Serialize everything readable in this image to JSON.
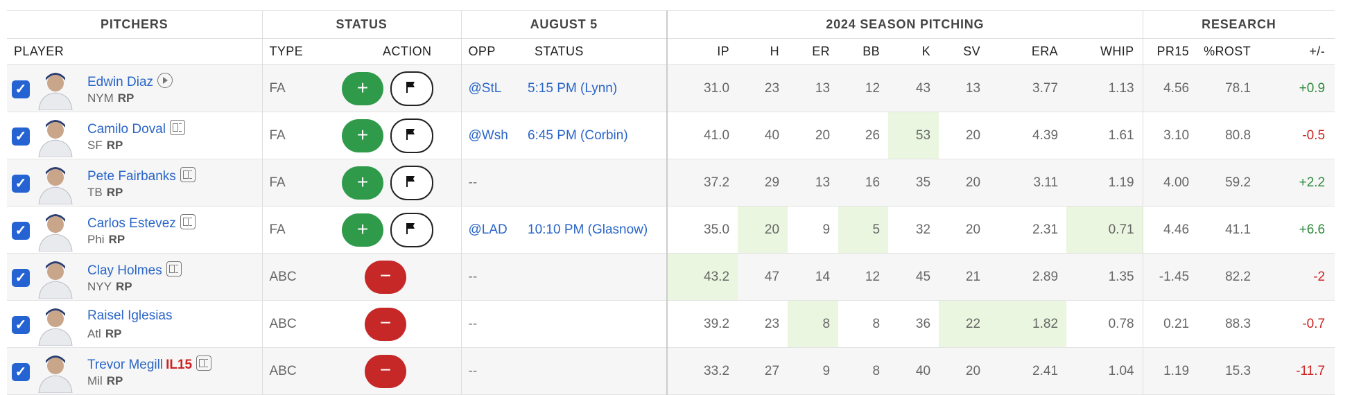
{
  "header": {
    "groups": {
      "pitchers": "PITCHERS",
      "status": "STATUS",
      "date": "AUGUST 5",
      "season": "2024 SEASON PITCHING",
      "research": "RESEARCH"
    },
    "cols": {
      "player": "PLAYER",
      "type": "TYPE",
      "action": "ACTION",
      "opp": "OPP",
      "status": "STATUS",
      "ip": "IP",
      "h": "H",
      "er": "ER",
      "bb": "BB",
      "k": "K",
      "sv": "SV",
      "era": "ERA",
      "whip": "WHIP",
      "pr15": "PR15",
      "rost": "%ROST",
      "plusminus": "+/-"
    }
  },
  "colors": {
    "link": "#2a65c8",
    "add": "#2f9b4a",
    "drop": "#c62828",
    "highlight": "#eaf6df",
    "checkbox": "#2563d2"
  },
  "icons": {
    "checkbox": "✓",
    "add": "+",
    "drop": "−",
    "play": "play-icon",
    "news": "news-icon",
    "flag": "flag-icon"
  },
  "rows": [
    {
      "name": "Edwin Diaz",
      "tag": "",
      "icon": "play",
      "team": "NYM",
      "pos": "RP",
      "type": "FA",
      "action": "add",
      "opp": "@StL",
      "status": "5:15 PM (Lynn)",
      "ip": "31.0",
      "h": "23",
      "er": "13",
      "bb": "12",
      "k": "43",
      "sv": "13",
      "era": "3.77",
      "whip": "1.13",
      "pr15": "4.56",
      "rost": "78.1",
      "plusminus": "+0.9",
      "highlights": []
    },
    {
      "name": "Camilo Doval",
      "tag": "",
      "icon": "news",
      "team": "SF",
      "pos": "RP",
      "type": "FA",
      "action": "add",
      "opp": "@Wsh",
      "status": "6:45 PM (Corbin)",
      "ip": "41.0",
      "h": "40",
      "er": "20",
      "bb": "26",
      "k": "53",
      "sv": "20",
      "era": "4.39",
      "whip": "1.61",
      "pr15": "3.10",
      "rost": "80.8",
      "plusminus": "-0.5",
      "highlights": [
        "k"
      ]
    },
    {
      "name": "Pete Fairbanks",
      "tag": "",
      "icon": "news",
      "team": "TB",
      "pos": "RP",
      "type": "FA",
      "action": "add",
      "opp": "--",
      "status": "",
      "ip": "37.2",
      "h": "29",
      "er": "13",
      "bb": "16",
      "k": "35",
      "sv": "20",
      "era": "3.11",
      "whip": "1.19",
      "pr15": "4.00",
      "rost": "59.2",
      "plusminus": "+2.2",
      "highlights": []
    },
    {
      "name": "Carlos Estevez",
      "tag": "",
      "icon": "news",
      "team": "Phi",
      "pos": "RP",
      "type": "FA",
      "action": "add",
      "opp": "@LAD",
      "status": "10:10 PM (Glasnow)",
      "ip": "35.0",
      "h": "20",
      "er": "9",
      "bb": "5",
      "k": "32",
      "sv": "20",
      "era": "2.31",
      "whip": "0.71",
      "pr15": "4.46",
      "rost": "41.1",
      "plusminus": "+6.6",
      "highlights": [
        "h",
        "bb",
        "whip"
      ]
    },
    {
      "name": "Clay Holmes",
      "tag": "",
      "icon": "news",
      "team": "NYY",
      "pos": "RP",
      "type": "ABC",
      "action": "drop",
      "opp": "--",
      "status": "",
      "ip": "43.2",
      "h": "47",
      "er": "14",
      "bb": "12",
      "k": "45",
      "sv": "21",
      "era": "2.89",
      "whip": "1.35",
      "pr15": "-1.45",
      "rost": "82.2",
      "plusminus": "-2",
      "highlights": [
        "ip"
      ]
    },
    {
      "name": "Raisel Iglesias",
      "tag": "",
      "icon": "",
      "team": "Atl",
      "pos": "RP",
      "type": "ABC",
      "action": "drop",
      "opp": "--",
      "status": "",
      "ip": "39.2",
      "h": "23",
      "er": "8",
      "bb": "8",
      "k": "36",
      "sv": "22",
      "era": "1.82",
      "whip": "0.78",
      "pr15": "0.21",
      "rost": "88.3",
      "plusminus": "-0.7",
      "highlights": [
        "er",
        "sv",
        "era"
      ]
    },
    {
      "name": "Trevor Megill",
      "tag": "IL15",
      "icon": "news",
      "team": "Mil",
      "pos": "RP",
      "type": "ABC",
      "action": "drop",
      "opp": "--",
      "status": "",
      "ip": "33.2",
      "h": "27",
      "er": "9",
      "bb": "8",
      "k": "40",
      "sv": "20",
      "era": "2.41",
      "whip": "1.04",
      "pr15": "1.19",
      "rost": "15.3",
      "plusminus": "-11.7",
      "highlights": []
    }
  ]
}
